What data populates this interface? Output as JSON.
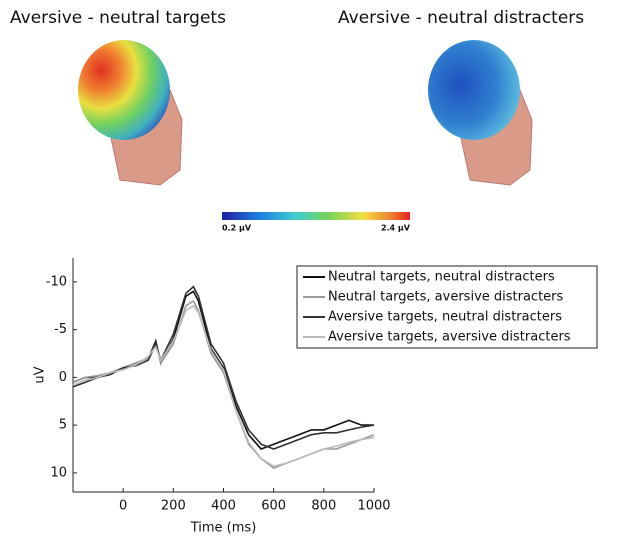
{
  "topomaps": [
    {
      "title": "Aversive - neutral targets"
    },
    {
      "title": "Aversive - neutral distracters"
    }
  ],
  "colorbar": {
    "min_label": "0.2 µV",
    "max_label": "2.4 µV"
  },
  "chart_data": {
    "type": "line",
    "xlabel": "Time (ms)",
    "ylabel": "uV",
    "x": [
      -200,
      -150,
      -100,
      -50,
      0,
      50,
      100,
      130,
      150,
      200,
      250,
      280,
      300,
      350,
      400,
      450,
      500,
      550,
      600,
      650,
      700,
      750,
      800,
      850,
      900,
      950,
      1000
    ],
    "series": [
      {
        "name": "Neutral targets, neutral distracters",
        "color": "#111111",
        "values": [
          0.5,
          0,
          0,
          -0.5,
          -1,
          -1.5,
          -2,
          -3.8,
          -1.5,
          -4,
          -8.5,
          -9,
          -8,
          -3,
          -1,
          3,
          6,
          7.5,
          7,
          6.5,
          6,
          5.5,
          5.5,
          5,
          4.5,
          5,
          5
        ]
      },
      {
        "name": "Neutral targets, aversive distracters",
        "color": "#999999",
        "values": [
          0.5,
          0,
          -0.2,
          -0.5,
          -1,
          -1.5,
          -2,
          -3.5,
          -1.5,
          -3.5,
          -7.5,
          -8,
          -7,
          -2.5,
          -0.5,
          3.5,
          7,
          8.5,
          9.5,
          9,
          8.5,
          8,
          7.5,
          7.5,
          7,
          6.5,
          6
        ]
      },
      {
        "name": "Aversive targets, neutral distracters",
        "color": "#333333",
        "values": [
          1,
          0.5,
          0,
          -0.3,
          -1,
          -1.2,
          -1.8,
          -3.5,
          -1.8,
          -4.5,
          -8.8,
          -9.5,
          -8.5,
          -3.5,
          -1.5,
          2.5,
          5.5,
          7,
          7.5,
          7,
          6.5,
          6,
          5.8,
          5.8,
          5.5,
          5.2,
          5
        ]
      },
      {
        "name": "Aversive targets, aversive distracters",
        "color": "#bbbbbb",
        "values": [
          0.8,
          0.3,
          0,
          -0.5,
          -0.8,
          -1.3,
          -2.2,
          -3.2,
          -1.8,
          -3.8,
          -7,
          -7.5,
          -6.8,
          -2.8,
          -0.8,
          3.5,
          6.8,
          8.5,
          9.3,
          9,
          8.5,
          8,
          7.5,
          7.2,
          6.8,
          6.5,
          6.3
        ]
      }
    ],
    "xlim": [
      -200,
      1000
    ],
    "xticks": [
      0,
      200,
      400,
      600,
      800,
      1000
    ],
    "ylim": [
      -12.5,
      12
    ],
    "yticks": [
      -10,
      -5,
      0,
      5,
      10
    ],
    "y_inverted": true,
    "legend": "upper-right"
  }
}
